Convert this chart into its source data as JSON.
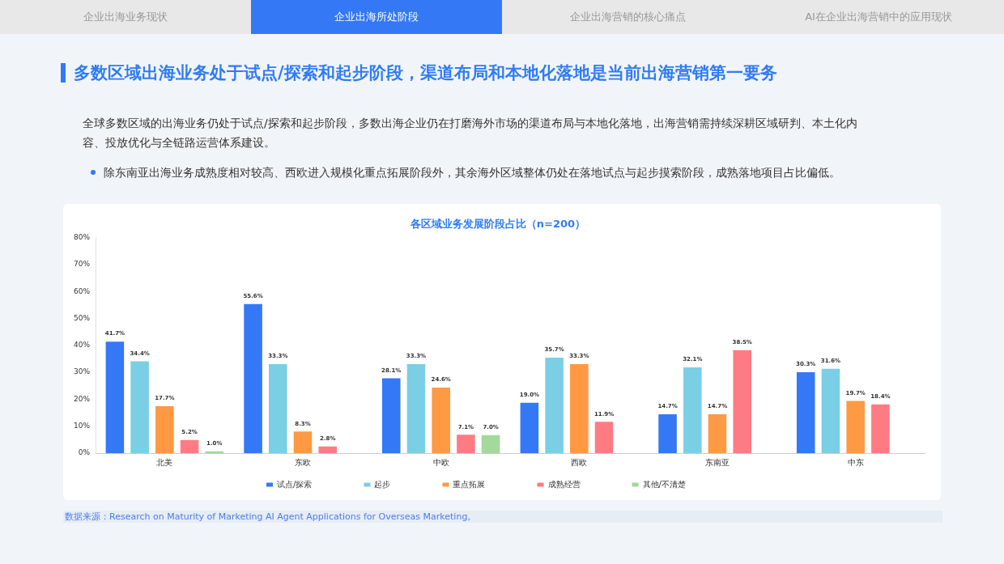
{
  "chart_data": {
    "type": "bar",
    "title": "各区域业务发展阶段占比（n=200）",
    "categories": [
      "北美",
      "东欧",
      "中欧",
      "西欧",
      "东南亚",
      "中东"
    ],
    "series": [
      {
        "name": "试点/探索",
        "color": "#3478f6",
        "values": [
          41.7,
          55.6,
          28.1,
          19.0,
          14.7,
          30.3
        ],
        "value_labels": [
          "41.7%",
          "55.6%",
          "28.1%",
          "19.0%",
          "14.7%",
          "30.3%"
        ]
      },
      {
        "name": "起步",
        "color": "#7acfe5",
        "values": [
          34.4,
          33.3,
          33.3,
          35.7,
          32.1,
          31.6
        ],
        "value_labels": [
          "34.4%",
          "33.3%",
          "33.3%",
          "35.7%",
          "32.1%",
          "31.6%"
        ]
      },
      {
        "name": "重点拓展",
        "color": "#ff9944",
        "values": [
          17.7,
          8.3,
          24.6,
          33.3,
          14.7,
          19.7
        ],
        "value_labels": [
          "17.7%",
          "8.3%",
          "24.6%",
          "33.3%",
          "14.7%",
          "19.7%"
        ]
      },
      {
        "name": "成熟经营",
        "color": "#ff7b84",
        "values": [
          5.2,
          2.8,
          7.1,
          11.9,
          38.5,
          18.4
        ],
        "value_labels": [
          "5.2%",
          "2.8%",
          "7.1%",
          "11.9%",
          "38.5%",
          "18.4%"
        ]
      },
      {
        "name": "其他/不清楚",
        "color": "#a3d99b",
        "values": [
          1.0,
          null,
          7.0,
          null,
          null,
          null
        ],
        "value_labels": [
          "1.0%",
          null,
          "7.0%",
          null,
          null,
          null
        ]
      }
    ],
    "ylim": [
      0,
      80
    ],
    "yticks": [
      {
        "value": 0,
        "label": "0%"
      },
      {
        "value": 10,
        "label": "10%"
      },
      {
        "value": 20,
        "label": "20%"
      },
      {
        "value": 30,
        "label": "30%"
      },
      {
        "value": 40,
        "label": "40%"
      },
      {
        "value": 50,
        "label": "50%"
      },
      {
        "value": 60,
        "label": "60%"
      },
      {
        "value": 70,
        "label": "70%"
      },
      {
        "value": 80,
        "label": "80%"
      }
    ],
    "grid": false,
    "legend": "bottom",
    "annotations": [
      "企业出海业务现状",
      "企业出海所处阶段",
      "企业出海营销的核心痛点",
      "AI在企业出海营销中的应用现状",
      "多数区域出海业务处于试点/探索和起步阶段，渠道布局和本地化落地是当前出海营销第一要务",
      "全球多数区域的出海业务仍处于试点/探索和起步阶段，多数出海企业仍在打磨海外市场的渠道布局与本地化落地，出海营销需持续深耕区域研判、本土化内容、投放优化与全链路运营体系建设。",
      "除东南亚出海业务成熟度相对较高、西欧进入规模化重点拓展阶段外，其余海外区域整体仍处在落地试点与起步摸索阶段，成熟落地项目占比偏低。",
      "数据来源：Research on Maturity of Marketing AI Agent Applications for Overseas Marketing。"
    ]
  }
}
